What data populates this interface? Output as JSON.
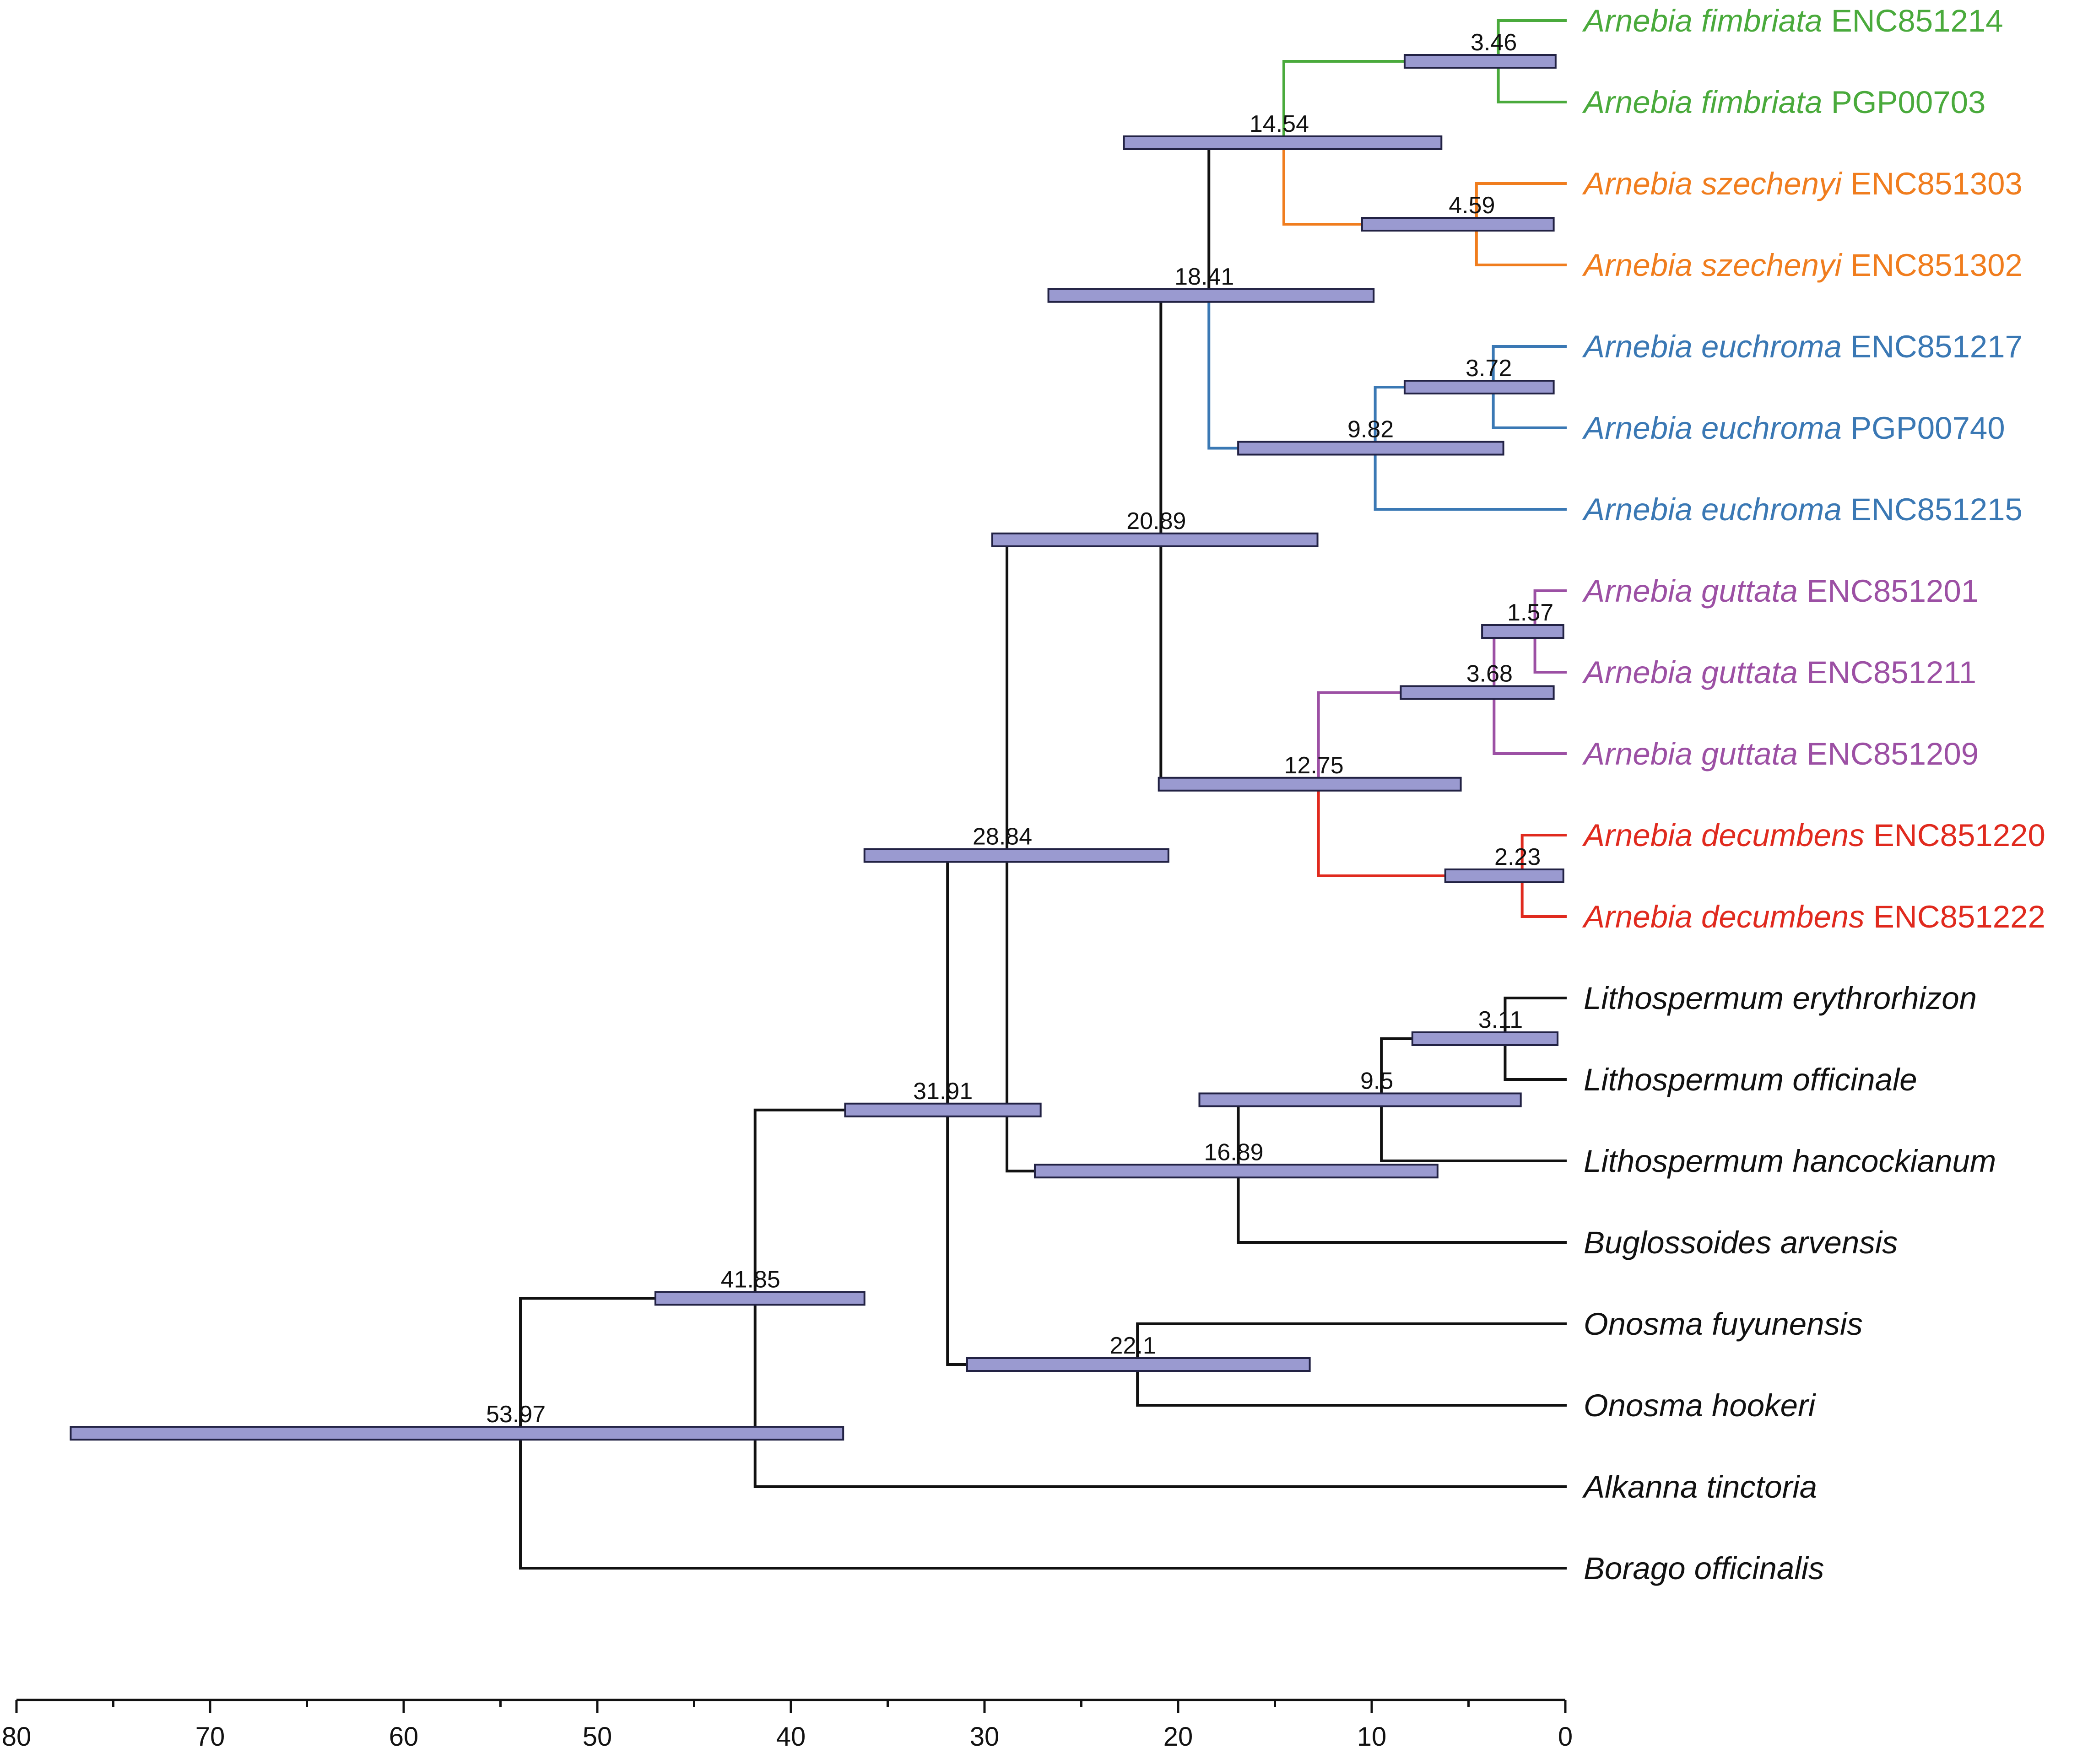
{
  "colors": {
    "hpd_fill": "#9a9ad0",
    "hpd_stroke": "#222244",
    "axis": "#111111",
    "default_branch": "#111111",
    "clades": {
      "fimbriata": "#4aaa3c",
      "szechenyi": "#f07d1e",
      "euchroma": "#3a78b4",
      "guttata": "#9c50a4",
      "decumbens": "#e02a1e",
      "outgroup": "#111111"
    }
  },
  "chart_data": {
    "type": "phylogenetic-tree",
    "xlabel": "",
    "xlim": [
      80,
      0
    ],
    "xticks": [
      "80",
      "70",
      "60",
      "50",
      "40",
      "30",
      "20",
      "10",
      "0"
    ],
    "taxa": [
      {
        "id": "t1",
        "genus_species": "Arnebia fimbriata",
        "code": "ENC851214",
        "clade": "fimbriata"
      },
      {
        "id": "t2",
        "genus_species": "Arnebia fimbriata",
        "code": "PGP00703",
        "clade": "fimbriata"
      },
      {
        "id": "t3",
        "genus_species": "Arnebia szechenyi",
        "code": "ENC851303",
        "clade": "szechenyi"
      },
      {
        "id": "t4",
        "genus_species": "Arnebia szechenyi",
        "code": "ENC851302",
        "clade": "szechenyi"
      },
      {
        "id": "t5",
        "genus_species": "Arnebia euchroma",
        "code": "ENC851217",
        "clade": "euchroma"
      },
      {
        "id": "t6",
        "genus_species": "Arnebia euchroma",
        "code": "PGP00740",
        "clade": "euchroma"
      },
      {
        "id": "t7",
        "genus_species": "Arnebia euchroma",
        "code": "ENC851215",
        "clade": "euchroma"
      },
      {
        "id": "t8",
        "genus_species": "Arnebia guttata",
        "code": "ENC851201",
        "clade": "guttata"
      },
      {
        "id": "t9",
        "genus_species": "Arnebia guttata",
        "code": "ENC851211",
        "clade": "guttata"
      },
      {
        "id": "t10",
        "genus_species": "Arnebia guttata",
        "code": "ENC851209",
        "clade": "guttata"
      },
      {
        "id": "t11",
        "genus_species": "Arnebia decumbens",
        "code": "ENC851220",
        "clade": "decumbens"
      },
      {
        "id": "t12",
        "genus_species": "Arnebia decumbens",
        "code": "ENC851222",
        "clade": "decumbens"
      },
      {
        "id": "t13",
        "genus_species": "Lithospermum erythrorhizon",
        "code": "",
        "clade": "outgroup"
      },
      {
        "id": "t14",
        "genus_species": "Lithospermum officinale",
        "code": "",
        "clade": "outgroup"
      },
      {
        "id": "t15",
        "genus_species": "Lithospermum hancockianum",
        "code": "",
        "clade": "outgroup"
      },
      {
        "id": "t16",
        "genus_species": "Buglossoides arvensis",
        "code": "",
        "clade": "outgroup"
      },
      {
        "id": "t17",
        "genus_species": "Onosma fuyunensis",
        "code": "",
        "clade": "outgroup"
      },
      {
        "id": "t18",
        "genus_species": "Onosma hookeri",
        "code": "",
        "clade": "outgroup"
      },
      {
        "id": "t19",
        "genus_species": "Alkanna tinctoria",
        "code": "",
        "clade": "outgroup"
      },
      {
        "id": "t20",
        "genus_species": "Borago officinalis",
        "code": "",
        "clade": "outgroup"
      }
    ],
    "nodes": [
      {
        "id": "n_root",
        "age": 53.97,
        "label": "53.97",
        "hpd": [
          77.2,
          37.3
        ],
        "children": [
          "n41",
          "t20"
        ],
        "clade": "outgroup"
      },
      {
        "id": "n41",
        "age": 41.85,
        "label": "41.85",
        "hpd": [
          47.0,
          36.2
        ],
        "children": [
          "n31",
          "t19"
        ],
        "clade": "outgroup"
      },
      {
        "id": "n31",
        "age": 31.91,
        "label": "31.91",
        "hpd": [
          37.2,
          27.1
        ],
        "children": [
          "n28",
          "n22"
        ],
        "clade": "outgroup"
      },
      {
        "id": "n28",
        "age": 28.84,
        "label": "28.84",
        "hpd": [
          36.2,
          20.5
        ],
        "children": [
          "n20",
          "n16"
        ],
        "clade": "outgroup"
      },
      {
        "id": "n20",
        "age": 20.89,
        "label": "20.89",
        "hpd": [
          29.6,
          12.8
        ],
        "children": [
          "n18",
          "n12"
        ],
        "clade": "outgroup"
      },
      {
        "id": "n18",
        "age": 18.41,
        "label": "18.41",
        "hpd": [
          26.7,
          9.9
        ],
        "children": [
          "n14",
          "n9"
        ],
        "clade": "outgroup"
      },
      {
        "id": "n14",
        "age": 14.54,
        "label": "14.54",
        "hpd": [
          22.8,
          6.4
        ],
        "children": [
          "n3_46",
          "n4_59"
        ],
        "clade": "outgroup"
      },
      {
        "id": "n3_46",
        "age": 3.46,
        "label": "3.46",
        "hpd": [
          8.3,
          0.5
        ],
        "children": [
          "t1",
          "t2"
        ],
        "clade": "fimbriata"
      },
      {
        "id": "n4_59",
        "age": 4.59,
        "label": "4.59",
        "hpd": [
          10.5,
          0.6
        ],
        "children": [
          "t3",
          "t4"
        ],
        "clade": "szechenyi"
      },
      {
        "id": "n9",
        "age": 9.82,
        "label": "9.82",
        "hpd": [
          16.9,
          3.2
        ],
        "children": [
          "n3_72",
          "t7"
        ],
        "clade": "euchroma"
      },
      {
        "id": "n3_72",
        "age": 3.72,
        "label": "3.72",
        "hpd": [
          8.3,
          0.6
        ],
        "children": [
          "t5",
          "t6"
        ],
        "clade": "euchroma"
      },
      {
        "id": "n12",
        "age": 12.75,
        "label": "12.75",
        "hpd": [
          21.0,
          5.4
        ],
        "children": [
          "n3_68",
          "n2_23"
        ],
        "clade": "outgroup"
      },
      {
        "id": "n3_68",
        "age": 3.68,
        "label": "3.68",
        "hpd": [
          8.5,
          0.6
        ],
        "children": [
          "n1_57",
          "t10"
        ],
        "clade": "guttata"
      },
      {
        "id": "n1_57",
        "age": 1.57,
        "label": "1.57",
        "hpd": [
          4.3,
          0.1
        ],
        "children": [
          "t8",
          "t9"
        ],
        "clade": "guttata"
      },
      {
        "id": "n2_23",
        "age": 2.23,
        "label": "2.23",
        "hpd": [
          6.2,
          0.1
        ],
        "children": [
          "t11",
          "t12"
        ],
        "clade": "decumbens"
      },
      {
        "id": "n16",
        "age": 16.89,
        "label": "16.89",
        "hpd": [
          27.4,
          6.6
        ],
        "children": [
          "n9_5",
          "t16"
        ],
        "clade": "outgroup"
      },
      {
        "id": "n9_5",
        "age": 9.5,
        "label": "9.5",
        "hpd": [
          18.9,
          2.3
        ],
        "children": [
          "n3_11",
          "t15"
        ],
        "clade": "outgroup"
      },
      {
        "id": "n3_11",
        "age": 3.11,
        "label": "3.11",
        "hpd": [
          7.9,
          0.4
        ],
        "children": [
          "t13",
          "t14"
        ],
        "clade": "outgroup"
      },
      {
        "id": "n22",
        "age": 22.1,
        "label": "22.1",
        "hpd": [
          30.9,
          13.2
        ],
        "children": [
          "t17",
          "t18"
        ],
        "clade": "outgroup"
      }
    ]
  }
}
